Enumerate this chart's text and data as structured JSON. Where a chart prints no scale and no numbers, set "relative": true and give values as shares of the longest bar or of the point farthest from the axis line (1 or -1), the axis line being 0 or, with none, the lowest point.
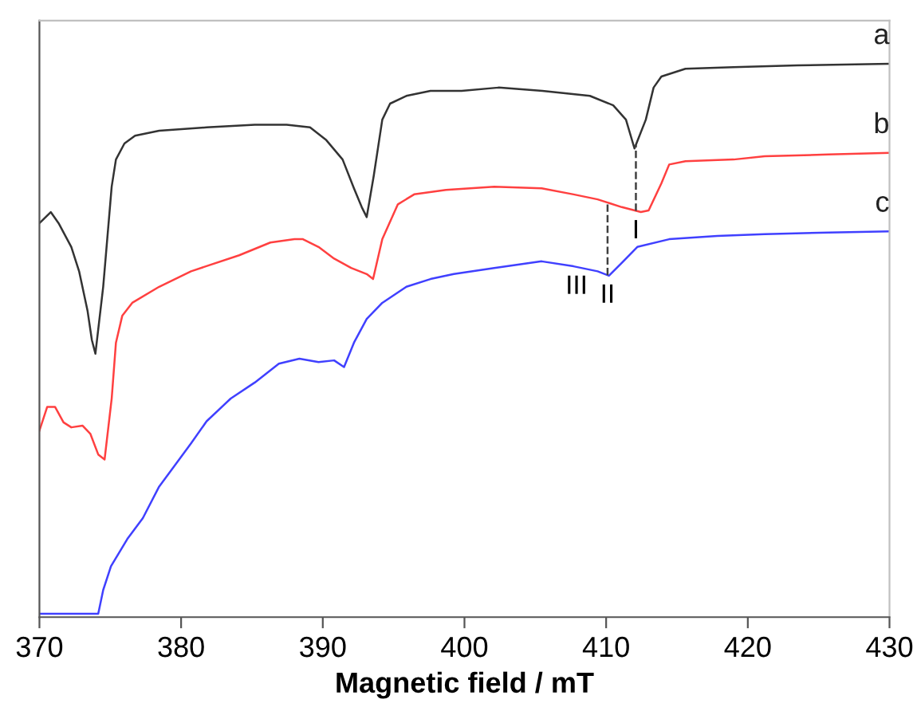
{
  "chart_data": {
    "type": "line",
    "relative": true,
    "xlabel": "Magnetic field / mT",
    "xlim": [
      370,
      430
    ],
    "xticks": [
      370,
      380,
      390,
      400,
      410,
      420,
      430
    ],
    "tick_labels": "x",
    "grid": false,
    "line_style": "solid",
    "marker": "none",
    "series": [
      {
        "name": "a",
        "color": "#333333",
        "x": [
          370.0,
          370.8,
          371.35,
          372.25,
          372.8,
          373.4,
          373.7,
          373.95,
          374.5,
          375.1,
          375.4,
          376.0,
          376.75,
          378.45,
          381.8,
          385.2,
          387.45,
          389.1,
          390.25,
          391.4,
          392.2,
          392.75,
          393.1,
          393.6,
          394.2,
          394.75,
          395.9,
          397.6,
          399.8,
          402.4,
          405.5,
          408.85,
          410.5,
          411.4,
          412.0,
          412.8,
          413.35,
          413.9,
          415.6,
          419.0,
          423.5,
          430.0
        ],
        "values": [
          0.712,
          0.732,
          0.712,
          0.669,
          0.625,
          0.553,
          0.501,
          0.476,
          0.597,
          0.778,
          0.827,
          0.856,
          0.87,
          0.879,
          0.885,
          0.89,
          0.89,
          0.885,
          0.862,
          0.827,
          0.775,
          0.741,
          0.723,
          0.798,
          0.899,
          0.928,
          0.942,
          0.951,
          0.951,
          0.957,
          0.951,
          0.942,
          0.925,
          0.899,
          0.847,
          0.899,
          0.957,
          0.977,
          0.991,
          0.994,
          0.997,
          1.0
        ]
      },
      {
        "name": "b",
        "color": "#ff4040",
        "x": [
          370.0,
          370.55,
          371.1,
          371.7,
          372.25,
          373.05,
          373.6,
          374.15,
          374.6,
          375.1,
          375.4,
          375.85,
          376.55,
          378.45,
          380.7,
          384.1,
          386.3,
          388.0,
          388.6,
          389.7,
          390.8,
          392.0,
          393.1,
          393.55,
          394.2,
          395.3,
          396.45,
          398.7,
          402.1,
          405.45,
          407.7,
          409.4,
          411.1,
          412.45,
          413.0,
          413.9,
          414.45,
          415.6,
          419.0,
          421.2,
          425.7,
          430.0
        ],
        "values": [
          0.337,
          0.38,
          0.38,
          0.352,
          0.343,
          0.346,
          0.331,
          0.294,
          0.285,
          0.395,
          0.496,
          0.545,
          0.568,
          0.597,
          0.625,
          0.654,
          0.677,
          0.683,
          0.683,
          0.669,
          0.648,
          0.631,
          0.62,
          0.611,
          0.683,
          0.746,
          0.764,
          0.772,
          0.778,
          0.775,
          0.764,
          0.755,
          0.741,
          0.732,
          0.735,
          0.784,
          0.818,
          0.824,
          0.827,
          0.833,
          0.836,
          0.839
        ]
      },
      {
        "name": "c",
        "color": "#4040ff",
        "x": [
          370.0,
          374.15,
          374.5,
          375.05,
          376.2,
          377.3,
          378.45,
          379.55,
          380.7,
          381.8,
          383.5,
          385.2,
          386.9,
          388.35,
          389.7,
          390.8,
          391.5,
          392.2,
          393.1,
          394.2,
          395.9,
          397.6,
          399.25,
          402.1,
          405.45,
          407.7,
          409.4,
          410.2,
          411.1,
          412.2,
          414.45,
          417.85,
          421.2,
          425.7,
          430.0
        ],
        "values": [
          0.006,
          0.006,
          0.049,
          0.092,
          0.141,
          0.179,
          0.236,
          0.274,
          0.314,
          0.354,
          0.395,
          0.424,
          0.458,
          0.467,
          0.461,
          0.464,
          0.452,
          0.496,
          0.539,
          0.568,
          0.597,
          0.611,
          0.62,
          0.631,
          0.643,
          0.634,
          0.625,
          0.617,
          0.64,
          0.669,
          0.683,
          0.689,
          0.692,
          0.695,
          0.697
        ]
      }
    ],
    "ref_lines": [
      {
        "axis": "x",
        "value": 412.1,
        "label": "I",
        "color": "#404040",
        "line_style": "dashed"
      },
      {
        "axis": "x",
        "value": 410.1,
        "label": "II",
        "color": "#404040",
        "line_style": "dashed"
      }
    ],
    "annotations": [
      "III"
    ]
  }
}
